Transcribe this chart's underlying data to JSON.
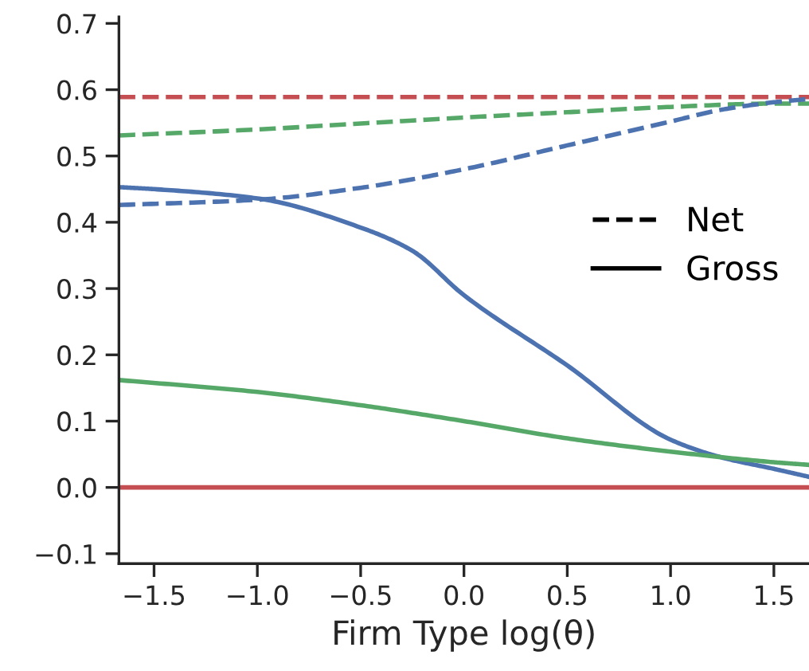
{
  "chart_data": {
    "type": "line",
    "xlabel": "Firm Type log(θ)",
    "xlim": [
      -1.67,
      1.67
    ],
    "xticks": [
      {
        "value": -1.5,
        "label": "−1.5"
      },
      {
        "value": -1.0,
        "label": "−1.0"
      },
      {
        "value": -0.5,
        "label": "−0.5"
      },
      {
        "value": 0.0,
        "label": "0.0"
      },
      0.5,
      {
        "value": 1.0,
        "label": "1.0"
      },
      1.5
    ],
    "ylim": [
      -0.115,
      0.71
    ],
    "yticks": [
      {
        "value": -0.1,
        "label": "−0.1"
      },
      {
        "value": 0.0,
        "label": "0.0"
      },
      0.1,
      0.2,
      0.3,
      0.4,
      0.5,
      0.6,
      0.7
    ],
    "grid": false,
    "marker": "none",
    "annotations": [
      "Net",
      "Gross"
    ],
    "series": [
      {
        "color": "#c44e52",
        "line_style": "dashed",
        "x": [
          -1.67,
          1.67
        ],
        "values": [
          0.589,
          0.589
        ]
      },
      {
        "color": "#55a868",
        "line_style": "dashed",
        "x": [
          -1.67,
          -1.0,
          -0.5,
          0.0,
          0.5,
          1.0,
          1.5,
          1.67
        ],
        "values": [
          0.531,
          0.54,
          0.549,
          0.558,
          0.566,
          0.574,
          0.579,
          0.579
        ]
      },
      {
        "color": "#4c72b0",
        "line_style": "dashed",
        "x": [
          -1.67,
          -1.0,
          -0.5,
          0.0,
          0.5,
          1.0,
          1.25,
          1.5,
          1.67
        ],
        "values": [
          0.426,
          0.434,
          0.452,
          0.48,
          0.516,
          0.552,
          0.57,
          0.581,
          0.586
        ]
      },
      {
        "color": "#4c72b0",
        "line_style": "solid",
        "x": [
          -1.67,
          -1.5,
          -1.0,
          -0.5,
          -0.25,
          0.0,
          0.5,
          1.0,
          1.25,
          1.5,
          1.67
        ],
        "values": [
          0.453,
          0.45,
          0.436,
          0.392,
          0.357,
          0.29,
          0.184,
          0.072,
          0.045,
          0.028,
          0.016
        ]
      },
      {
        "color": "#55a868",
        "line_style": "solid",
        "x": [
          -1.67,
          -1.0,
          -0.5,
          0.0,
          0.5,
          1.0,
          1.5,
          1.67
        ],
        "values": [
          0.162,
          0.144,
          0.124,
          0.1,
          0.074,
          0.054,
          0.038,
          0.034
        ]
      },
      {
        "color": "#c44e52",
        "line_style": "solid",
        "x": [
          -1.67,
          1.67
        ],
        "values": [
          0.0,
          0.0
        ]
      }
    ]
  }
}
